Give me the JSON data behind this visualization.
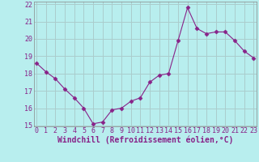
{
  "x": [
    0,
    1,
    2,
    3,
    4,
    5,
    6,
    7,
    8,
    9,
    10,
    11,
    12,
    13,
    14,
    15,
    16,
    17,
    18,
    19,
    20,
    21,
    22,
    23
  ],
  "y": [
    18.6,
    18.1,
    17.7,
    17.1,
    16.6,
    16.0,
    15.1,
    15.2,
    15.9,
    16.0,
    16.4,
    16.6,
    17.5,
    17.9,
    18.0,
    19.9,
    21.8,
    20.6,
    20.3,
    20.4,
    20.4,
    19.9,
    19.3,
    18.9
  ],
  "line_color": "#882288",
  "marker": "D",
  "marker_size": 2.5,
  "bg_color": "#b8eeee",
  "grid_color": "#aacccc",
  "xlabel": "Windchill (Refroidissement éolien,°C)",
  "tick_color": "#882288",
  "ylim": [
    15,
    22
  ],
  "xlim": [
    0,
    23
  ],
  "yticks": [
    15,
    16,
    17,
    18,
    19,
    20,
    21,
    22
  ],
  "xticks": [
    0,
    1,
    2,
    3,
    4,
    5,
    6,
    7,
    8,
    9,
    10,
    11,
    12,
    13,
    14,
    15,
    16,
    17,
    18,
    19,
    20,
    21,
    22,
    23
  ],
  "tick_fontsize": 6,
  "xlabel_fontsize": 7,
  "spine_color": "#888888"
}
